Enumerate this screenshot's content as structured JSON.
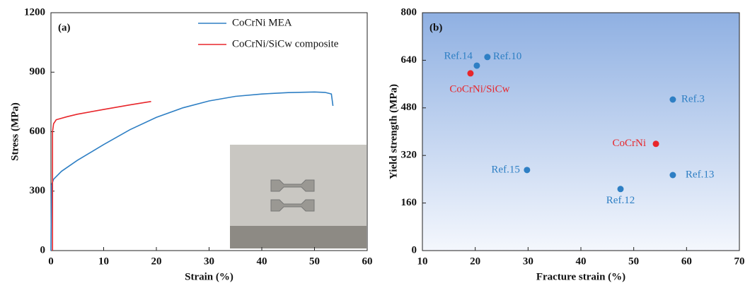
{
  "chart_data": [
    {
      "type": "line",
      "annotation": "(a)",
      "x_label": "Strain (%)",
      "y_label": "Stress (MPa)",
      "xlim": [
        0,
        60
      ],
      "xticks": [
        0,
        10,
        20,
        30,
        40,
        50,
        60
      ],
      "ylim": [
        0,
        1200
      ],
      "yticks": [
        0,
        300,
        600,
        900,
        1200
      ],
      "series": [
        {
          "name": "CoCrNi MEA",
          "color": "#2e7fc4",
          "x": [
            0,
            0.1,
            0.5,
            2,
            5,
            10,
            15,
            20,
            25,
            30,
            35,
            40,
            45,
            50,
            52,
            53.2,
            53.5
          ],
          "values": [
            0,
            330,
            360,
            400,
            455,
            535,
            610,
            672,
            720,
            755,
            778,
            790,
            797,
            800,
            798,
            790,
            730
          ]
        },
        {
          "name": "CoCrNi/SiCw composite",
          "color": "#e8262b",
          "x": [
            0.3,
            0.3,
            0.5,
            1,
            3,
            5,
            10,
            15,
            18,
            19
          ],
          "values": [
            0,
            600,
            640,
            660,
            675,
            688,
            712,
            735,
            748,
            752
          ]
        }
      ]
    },
    {
      "type": "scatter",
      "annotation": "(b)",
      "x_label": "Fracture strain (%)",
      "y_label": "Yield strength (MPa)",
      "xlim": [
        10,
        70
      ],
      "xticks": [
        10,
        20,
        30,
        40,
        50,
        60,
        70
      ],
      "ylim": [
        0,
        800
      ],
      "yticks": [
        0,
        160,
        320,
        480,
        640,
        800
      ],
      "labels": [
        "Ref.14",
        "Ref.10",
        "CoCrNi/SiCw",
        "Ref.3",
        "CoCrNi",
        "Ref.15",
        "Ref.13",
        "Ref.12"
      ],
      "x": [
        20.3,
        22.3,
        19.1,
        57.4,
        54.2,
        29.8,
        57.4,
        47.5
      ],
      "values": [
        622,
        651,
        596,
        508,
        359,
        271,
        254,
        207
      ],
      "colors": [
        "#2e7fc4",
        "#2e7fc4",
        "#e8262b",
        "#2e7fc4",
        "#e8262b",
        "#2e7fc4",
        "#2e7fc4",
        "#2e7fc4"
      ]
    }
  ]
}
